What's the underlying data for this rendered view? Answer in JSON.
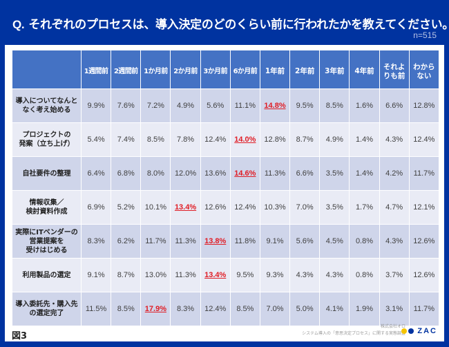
{
  "header": {
    "q": "Q.",
    "title": "それぞれのプロセスは、導入決定のどのくらい前に行われたかを教えてください。",
    "n": "n=515"
  },
  "columns": [
    "1週間前",
    "2週間前",
    "1か月前",
    "2か月前",
    "3か月前",
    "6か月前",
    "1年前",
    "2年前",
    "3年前",
    "4年前",
    "それよ\nりも前",
    "わから\nない"
  ],
  "rows": [
    {
      "label": "導入についてなんと\nなく考え始める",
      "values": [
        "9.9%",
        "7.6%",
        "7.2%",
        "4.9%",
        "5.6%",
        "11.1%",
        "14.8%",
        "9.5%",
        "8.5%",
        "1.6%",
        "6.6%",
        "12.8%"
      ],
      "highlight": 6
    },
    {
      "label": "プロジェクトの\n発案（立ち上げ）",
      "values": [
        "5.4%",
        "7.4%",
        "8.5%",
        "7.8%",
        "12.4%",
        "14.0%",
        "12.8%",
        "8.7%",
        "4.9%",
        "1.4%",
        "4.3%",
        "12.4%"
      ],
      "highlight": 5
    },
    {
      "label": "自社要件の整理",
      "values": [
        "6.4%",
        "6.8%",
        "8.0%",
        "12.0%",
        "13.6%",
        "14.6%",
        "11.3%",
        "6.6%",
        "3.5%",
        "1.4%",
        "4.2%",
        "11.7%"
      ],
      "highlight": 5
    },
    {
      "label": "情報収集／\n検討資料作成",
      "values": [
        "6.9%",
        "5.2%",
        "10.1%",
        "13.4%",
        "12.6%",
        "12.4%",
        "10.3%",
        "7.0%",
        "3.5%",
        "1.7%",
        "4.7%",
        "12.1%"
      ],
      "highlight": 3
    },
    {
      "label": "実際にITベンダーの\n営業提案を\n受けはじめる",
      "values": [
        "8.3%",
        "6.2%",
        "11.7%",
        "11.3%",
        "13.8%",
        "11.8%",
        "9.1%",
        "5.6%",
        "4.5%",
        "0.8%",
        "4.3%",
        "12.6%"
      ],
      "highlight": 4
    },
    {
      "label": "利用製品の選定",
      "values": [
        "9.1%",
        "8.7%",
        "13.0%",
        "11.3%",
        "13.4%",
        "9.5%",
        "9.3%",
        "4.3%",
        "4.3%",
        "0.8%",
        "3.7%",
        "12.6%"
      ],
      "highlight": 4
    },
    {
      "label": "導入委託先・購入先\nの選定完了",
      "values": [
        "11.5%",
        "8.5%",
        "17.9%",
        "8.3%",
        "12.4%",
        "8.5%",
        "7.0%",
        "5.0%",
        "4.1%",
        "1.9%",
        "3.1%",
        "11.7%"
      ],
      "highlight": 2
    }
  ],
  "footer": {
    "figure": "図3",
    "company": "株式会社オロ",
    "survey": "システム導入の「意思決定プロセス」に関する実態調査",
    "logo": "ZAC"
  },
  "colors": {
    "background": "#0033a0",
    "header": "#4472c4",
    "highlight": "#e01c24",
    "logo_yellow": "#f5c400",
    "logo_blue": "#0033a0"
  }
}
